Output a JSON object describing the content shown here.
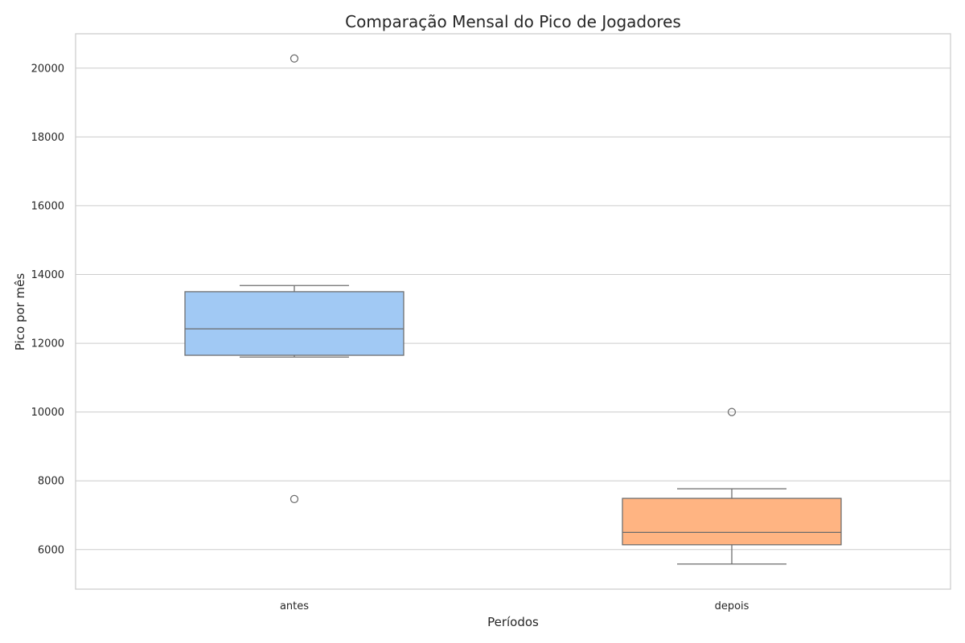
{
  "chart_data": {
    "type": "box",
    "title": "Comparação Mensal do Pico de Jogadores",
    "xlabel": "Períodos",
    "ylabel": "Pico por mês",
    "ylim": [
      4850,
      21000
    ],
    "yticks": [
      6000,
      8000,
      10000,
      12000,
      14000,
      16000,
      18000,
      20000
    ],
    "categories": [
      "antes",
      "depois"
    ],
    "grid": "horizontal",
    "series": [
      {
        "category": "antes",
        "color": "#a1c9f4",
        "whisker_low": 11600,
        "q1": 11650,
        "median": 12420,
        "q3": 13500,
        "whisker_high": 13680,
        "outliers": [
          20280,
          7470
        ]
      },
      {
        "category": "depois",
        "color": "#ffb482",
        "whisker_low": 5580,
        "q1": 6140,
        "median": 6500,
        "q3": 7490,
        "whisker_high": 7770,
        "outliers": [
          10000
        ]
      }
    ]
  }
}
